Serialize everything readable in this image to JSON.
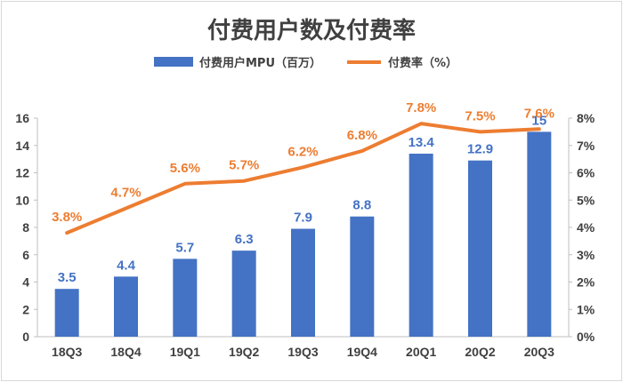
{
  "chart_data": {
    "type": "bar",
    "title": "付费用户数及付费率",
    "categories": [
      "18Q3",
      "18Q4",
      "19Q1",
      "19Q2",
      "19Q3",
      "19Q4",
      "20Q1",
      "20Q2",
      "20Q3"
    ],
    "series": [
      {
        "name": "付费用户MPU（百万）",
        "type": "bar",
        "axis": "left",
        "color": "#4472c4",
        "values": [
          3.5,
          4.4,
          5.7,
          6.3,
          7.9,
          8.8,
          13.4,
          12.9,
          15
        ],
        "labels": [
          "3.5",
          "4.4",
          "5.7",
          "6.3",
          "7.9",
          "8.8",
          "13.4",
          "12.9",
          "15"
        ]
      },
      {
        "name": "付费率（%）",
        "type": "line",
        "axis": "right",
        "color": "#ed7d31",
        "values": [
          3.8,
          4.7,
          5.6,
          5.7,
          6.2,
          6.8,
          7.8,
          7.5,
          7.6
        ],
        "labels": [
          "3.8%",
          "4.7%",
          "5.6%",
          "5.7%",
          "6.2%",
          "6.8%",
          "7.8%",
          "7.5%",
          "7.6%"
        ]
      }
    ],
    "y_left": {
      "min": 0,
      "max": 16,
      "ticks": [
        "0",
        "2",
        "4",
        "6",
        "8",
        "10",
        "12",
        "14",
        "16"
      ]
    },
    "y_right": {
      "min": 0,
      "max": 8,
      "ticks": [
        "0%",
        "1%",
        "2%",
        "3%",
        "4%",
        "5%",
        "6%",
        "7%",
        "8%"
      ]
    },
    "grid": false,
    "legend_position": "top"
  }
}
